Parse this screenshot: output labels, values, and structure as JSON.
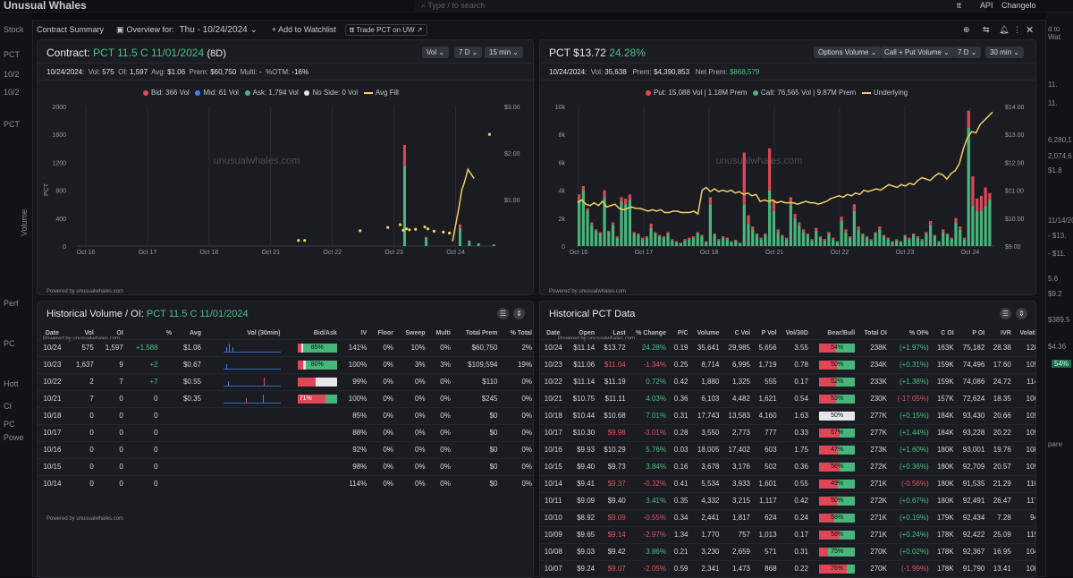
{
  "topbar": {
    "logo": "Unusual Whales",
    "search_placeholder": "Type / to search",
    "api": "API",
    "changelog": "Changelo"
  },
  "modal": {
    "contract_summary": "Contract Summary",
    "overview_for": "Overview for:",
    "date": "Thu - 10/24/2024",
    "add_watchlist": "Add to Watchlist",
    "trade": "Trade PCT on UW"
  },
  "left_bg": [
    "Stock",
    "PCT",
    "10/2",
    "10/2",
    "PCT",
    "Volume",
    "Perf",
    "PC",
    "Hott",
    "CI",
    "PC",
    "Powe"
  ],
  "right_bg": [
    "d to Wat",
    "11.",
    "11.",
    "6,280,1",
    "2,074,6",
    "$1.8",
    "11/14/20",
    "- $13.",
    "- $11.",
    "5.6",
    "$9.2",
    "$389.5",
    "$4.36",
    "54%",
    "pare"
  ],
  "contract": {
    "label": "Contract:",
    "name": "PCT 11.5 C 11/01/2024",
    "dte": "(8D)",
    "pills": [
      "Vol",
      "7 D",
      "15 min"
    ],
    "info": {
      "date": "10/24/2024:",
      "vol_l": "Vol:",
      "vol": "575",
      "oi_l": "OI:",
      "oi": "1,597",
      "avg_l": "Avg:",
      "avg": "$1.06",
      "prem_l": "Prem:",
      "prem": "$60,750",
      "multi_l": "Multi:",
      "multi": "-",
      "otm_l": "%OTM:",
      "otm": "-16%"
    },
    "legend": {
      "bid": "Bid: 366 Vol",
      "mid": "Mid: 61 Vol",
      "ask": "Ask: 1,794 Vol",
      "noside": "No Side: 0 Vol",
      "avgfill": "Avg Fill"
    },
    "watermark": "unusualwhales.com",
    "powered": "Powered by unusualwhales.com"
  },
  "stock": {
    "ticker": "PCT",
    "price": "$13.72",
    "change": "24.28%",
    "pills": [
      "Options Volume",
      "Call + Put Volume",
      "7 D",
      "30 min"
    ],
    "info": {
      "date": "10/24/2024:",
      "vol_l": "Vol:",
      "vol": "35,638",
      "prem_l": "Prem:",
      "prem": "$4,390,853",
      "net_l": "Net Prem:",
      "net": "$868,579"
    },
    "legend": {
      "put": "Put: 15,088 Vol | 1.18M Prem",
      "call": "Call: 76,565 Vol | 9.87M Prem",
      "underlying": "Underlying"
    },
    "watermark": "unusualwhales.com",
    "powered": "Powered by unusualwhales.com"
  },
  "chart_data": [
    {
      "type": "bar",
      "title": "",
      "series": [
        {
          "name": "Bid",
          "color": "#df4757"
        },
        {
          "name": "Ask",
          "color": "#48b57c"
        },
        {
          "name": "Avg Fill",
          "color": "#f3cf63"
        }
      ],
      "x_ticks": [
        "Oct 16",
        "Oct 17",
        "Oct 18",
        "Oct 21",
        "Oct 22",
        "Oct 23",
        "Oct 24"
      ],
      "y_left_ticks": [
        "2000",
        "1600",
        "1200",
        "800",
        "400",
        "0"
      ],
      "y_left_label": "PCT",
      "y_left_range": [
        0,
        2000
      ],
      "y_right_ticks": [
        "$3.00",
        "$2.00",
        "$1.00"
      ],
      "y_right_range": [
        0,
        3
      ],
      "bars": [
        {
          "x": 5.15,
          "ask": 1150,
          "bid": 300
        },
        {
          "x": 5.5,
          "ask": 120,
          "bid": 10
        },
        {
          "x": 6.05,
          "ask": 250,
          "bid": 60
        },
        {
          "x": 6.2,
          "ask": 70,
          "bid": 10
        },
        {
          "x": 6.35,
          "ask": 40,
          "bid": 0
        },
        {
          "x": 6.6,
          "ask": 20,
          "bid": 5
        }
      ],
      "avgfill_points": [
        [
          3.45,
          0.12
        ],
        [
          3.55,
          0.12
        ],
        [
          4.45,
          0.33
        ],
        [
          4.9,
          0.4
        ],
        [
          5.1,
          0.46
        ],
        [
          5.15,
          0.34
        ],
        [
          5.2,
          0.37
        ],
        [
          5.25,
          0.35
        ],
        [
          5.35,
          0.36
        ],
        [
          5.5,
          0.41
        ],
        [
          5.55,
          0.37
        ],
        [
          5.65,
          0.32
        ],
        [
          5.8,
          0.3
        ],
        [
          5.9,
          0.28
        ],
        [
          6.55,
          2.4
        ]
      ],
      "avgfill_line": [
        [
          5.95,
          0.1
        ],
        [
          6.05,
          0.8
        ],
        [
          6.1,
          1.2
        ],
        [
          6.15,
          1.4
        ],
        [
          6.2,
          1.65
        ],
        [
          6.25,
          1.55
        ],
        [
          6.3,
          1.45
        ]
      ]
    },
    {
      "type": "bar",
      "title": "",
      "series": [
        {
          "name": "Put",
          "color": "#df4757"
        },
        {
          "name": "Call",
          "color": "#48b57c"
        },
        {
          "name": "Underlying",
          "color": "#f3cf63"
        }
      ],
      "x_ticks": [
        "Oct 16",
        "Oct 17",
        "Oct 18",
        "Oct 21",
        "Oct 22",
        "Oct 23",
        "Oct 24"
      ],
      "y_left_ticks": [
        "10k",
        "8k",
        "6k",
        "4k",
        "2k",
        "0"
      ],
      "y_left_range": [
        0,
        10000
      ],
      "y_right_ticks": [
        "$14.00",
        "$13.00",
        "$12.00",
        "$11.00",
        "$10.00",
        "$9.00"
      ],
      "y_right_range": [
        9,
        14
      ],
      "calls": [
        3300,
        4000,
        2500,
        1500,
        1100,
        900,
        3500,
        1000,
        1500,
        600,
        3200,
        3000,
        3300,
        900,
        800,
        500,
        600,
        1300,
        900,
        700,
        600,
        900,
        400,
        300,
        200,
        400,
        500,
        600,
        900,
        700,
        300,
        3000,
        800,
        400,
        600,
        500,
        300,
        400,
        200,
        3000,
        1600,
        1200,
        800,
        500,
        800,
        4000,
        2500,
        1000,
        700,
        500,
        3000,
        2000,
        1500,
        1000,
        800,
        400,
        1100,
        600,
        400,
        900,
        500,
        300,
        1800,
        1000,
        600,
        2500,
        1200,
        800,
        600,
        400,
        900,
        1200,
        700,
        500,
        300,
        400,
        300,
        700,
        500,
        800,
        600,
        400,
        900,
        1500,
        700,
        300,
        1000,
        800,
        500,
        1700,
        1200,
        500,
        8500,
        2900,
        2500,
        2500,
        2900,
        3300
      ],
      "puts": [
        400,
        300,
        200,
        200,
        100,
        100,
        500,
        100,
        200,
        100,
        300,
        400,
        400,
        100,
        100,
        100,
        100,
        300,
        100,
        100,
        100,
        100,
        100,
        50,
        50,
        100,
        100,
        100,
        100,
        100,
        50,
        500,
        100,
        100,
        100,
        100,
        50,
        50,
        50,
        3700,
        600,
        200,
        100,
        100,
        100,
        3000,
        800,
        200,
        100,
        100,
        500,
        300,
        200,
        200,
        100,
        100,
        200,
        100,
        100,
        100,
        100,
        50,
        300,
        200,
        100,
        500,
        200,
        100,
        100,
        100,
        100,
        200,
        100,
        100,
        50,
        100,
        50,
        100,
        100,
        100,
        100,
        100,
        100,
        300,
        100,
        50,
        200,
        100,
        100,
        300,
        200,
        100,
        1200,
        2100,
        900,
        1100,
        1300,
        500
      ],
      "underlying": [
        10.55,
        10.65,
        10.5,
        10.45,
        10.55,
        10.45,
        10.6,
        10.4,
        10.45,
        10.5,
        10.35,
        10.3,
        10.35,
        10.4,
        10.35,
        10.35,
        10.3,
        10.25,
        10.3,
        10.25,
        10.3,
        10.2,
        10.2,
        10.25,
        10.25,
        10.2,
        10.2,
        10.2,
        10.25,
        10.15,
        11.0,
        11.1,
        10.95,
        11.05,
        10.95,
        11.0,
        10.95,
        11.0,
        10.9,
        10.95,
        10.85,
        10.9,
        10.8,
        10.85,
        10.6,
        10.65,
        10.6,
        10.65,
        10.55,
        10.6,
        10.55,
        10.55,
        10.55,
        10.5,
        10.55,
        10.6,
        10.55,
        10.55,
        10.5,
        10.55,
        10.6,
        10.7,
        10.75,
        10.8,
        10.75,
        10.85,
        10.8,
        10.9,
        10.85,
        11.0,
        10.95,
        11.0,
        11.05,
        11.0,
        11.1,
        11.2,
        11.15,
        11.1,
        11.2,
        11.15,
        11.25,
        11.2,
        11.35,
        11.45,
        11.4,
        11.35,
        11.5,
        11.6,
        11.55,
        11.4,
        11.6,
        11.7,
        11.95,
        12.5,
        12.9,
        13.1,
        13.05,
        13.35,
        13.5,
        13.65,
        13.8
      ]
    }
  ],
  "hist_vol": {
    "title": "Historical Volume / OI:",
    "contract": "PCT 11.5 C 11/01/2024",
    "powered": "Powered by unusualwhales.com",
    "headers": [
      "Date",
      "Vol",
      "OI",
      "",
      "%",
      "Avg",
      "Vol (30min)",
      "Bid/Ask",
      "IV",
      "Floor",
      "Sweep",
      "Multi",
      "Total Prem",
      "% Total"
    ],
    "rows": [
      {
        "date": "10/24",
        "vol": "575",
        "oi": "1,597",
        "chg": "+1,588",
        "avg": "$1.06",
        "ba": "85%",
        "ba_r": 0.1,
        "ba_g": 0.85,
        "iv": "141%",
        "floor": "0%",
        "sweep": "10%",
        "multi": "0%",
        "prem": "$60,750",
        "tot": "2%"
      },
      {
        "date": "10/23",
        "vol": "1,637",
        "oi": "9",
        "chg": "+2",
        "avg": "$0.67",
        "ba": "80%",
        "ba_r": 0.15,
        "ba_g": 0.8,
        "iv": "100%",
        "floor": "0%",
        "sweep": "3%",
        "multi": "3%",
        "prem": "$109,594",
        "tot": "19%"
      },
      {
        "date": "10/22",
        "vol": "2",
        "oi": "7",
        "chg": "+7",
        "avg": "$0.55",
        "ba": "",
        "ba_r": 0.45,
        "ba_g": 0,
        "iv": "99%",
        "floor": "0%",
        "sweep": "0%",
        "multi": "0%",
        "prem": "$110",
        "tot": "0%"
      },
      {
        "date": "10/21",
        "vol": "7",
        "oi": "0",
        "chg": "0",
        "avg": "$0.35",
        "ba": "71%",
        "ba_r": 0.71,
        "ba_g": 0.29,
        "iv": "100%",
        "floor": "0%",
        "sweep": "0%",
        "multi": "0%",
        "prem": "$245",
        "tot": "0%"
      },
      {
        "date": "10/18",
        "vol": "0",
        "oi": "0",
        "chg": "0",
        "avg": "",
        "ba": "",
        "ba_r": 0,
        "ba_g": 0,
        "iv": "85%",
        "floor": "0%",
        "sweep": "0%",
        "multi": "0%",
        "prem": "$0",
        "tot": "0%"
      },
      {
        "date": "10/17",
        "vol": "0",
        "oi": "0",
        "chg": "0",
        "avg": "",
        "ba": "",
        "ba_r": 0,
        "ba_g": 0,
        "iv": "88%",
        "floor": "0%",
        "sweep": "0%",
        "multi": "0%",
        "prem": "$0",
        "tot": "0%"
      },
      {
        "date": "10/16",
        "vol": "0",
        "oi": "0",
        "chg": "0",
        "avg": "",
        "ba": "",
        "ba_r": 0,
        "ba_g": 0,
        "iv": "92%",
        "floor": "0%",
        "sweep": "0%",
        "multi": "0%",
        "prem": "$0",
        "tot": "0%"
      },
      {
        "date": "10/15",
        "vol": "0",
        "oi": "0",
        "chg": "0",
        "avg": "",
        "ba": "",
        "ba_r": 0,
        "ba_g": 0,
        "iv": "98%",
        "floor": "0%",
        "sweep": "0%",
        "multi": "0%",
        "prem": "$0",
        "tot": "0%"
      },
      {
        "date": "10/14",
        "vol": "0",
        "oi": "0",
        "chg": "0",
        "avg": "",
        "ba": "",
        "ba_r": 0,
        "ba_g": 0,
        "iv": "114%",
        "floor": "0%",
        "sweep": "0%",
        "multi": "0%",
        "prem": "$0",
        "tot": "0%"
      }
    ]
  },
  "hist_pct": {
    "title": "Historical PCT Data",
    "powered": "Powered by unusualwhales.com",
    "headers": [
      "Date",
      "Open",
      "Last",
      "% Change",
      "P/C",
      "Volume",
      "C Vol",
      "P Vol",
      "Vol/30D",
      "Bear/Bull",
      "Total OI",
      "% OI%",
      "C OI",
      "P OI",
      "IVR",
      "Volatil"
    ],
    "rows": [
      {
        "date": "10/24",
        "open": "$11.14",
        "last": "$13.72",
        "chg": "24.28%",
        "pc": "0.19",
        "vol": "35,641",
        "cvol": "29,985",
        "pvol": "5,656",
        "v30": "3.55",
        "bb": "54%",
        "bb_r": 0.46,
        "toi": "238K",
        "oip": "(+1.97%)",
        "coi": "163K",
        "poi": "75,182",
        "ivr": "28.38",
        "vola": "128"
      },
      {
        "date": "10/23",
        "open": "$11.06",
        "last": "$11.04",
        "chg": "-1.34%",
        "pc": "0.25",
        "vol": "8,714",
        "cvol": "6,995",
        "pvol": "1,719",
        "v30": "0.78",
        "bb": "50%",
        "bb_r": 0.5,
        "toi": "234K",
        "oip": "(+0.31%)",
        "coi": "159K",
        "poi": "74,496",
        "ivr": "17.60",
        "vola": "105"
      },
      {
        "date": "10/22",
        "open": "$11.14",
        "last": "$11.19",
        "chg": "0.72%",
        "pc": "0.42",
        "vol": "1,880",
        "cvol": "1,325",
        "pvol": "555",
        "v30": "0.17",
        "bb": "52%",
        "bb_r": 0.48,
        "toi": "233K",
        "oip": "(+1.38%)",
        "coi": "159K",
        "poi": "74,086",
        "ivr": "24.72",
        "vola": "114"
      },
      {
        "date": "10/21",
        "open": "$10.75",
        "last": "$11.11",
        "chg": "4.03%",
        "pc": "0.36",
        "vol": "6,103",
        "cvol": "4,482",
        "pvol": "1,621",
        "v30": "0.54",
        "bb": "53%",
        "bb_r": 0.47,
        "toi": "230K",
        "oip": "(-17.05%)",
        "coi": "157K",
        "poi": "72,624",
        "ivr": "18.35",
        "vola": "106"
      },
      {
        "date": "10/18",
        "open": "$10.44",
        "last": "$10.68",
        "chg": "7.01%",
        "pc": "0.31",
        "vol": "17,743",
        "cvol": "13,583",
        "pvol": "4,160",
        "v30": "1.63",
        "bb": "50%",
        "bb_r": 0,
        "toi": "277K",
        "oip": "(+0.15%)",
        "coi": "184K",
        "poi": "93,430",
        "ivr": "20.66",
        "vola": "109"
      },
      {
        "date": "10/17",
        "open": "$10.30",
        "last": "$9.98",
        "chg": "-3.01%",
        "pc": "0.28",
        "vol": "3,550",
        "cvol": "2,773",
        "pvol": "777",
        "v30": "0.33",
        "bb": "57%",
        "bb_r": 0.57,
        "toi": "277K",
        "oip": "(+1.44%)",
        "coi": "184K",
        "poi": "93,228",
        "ivr": "20.22",
        "vola": "109"
      },
      {
        "date": "10/16",
        "open": "$9.93",
        "last": "$10.29",
        "chg": "5.76%",
        "pc": "0.03",
        "vol": "18,005",
        "cvol": "17,402",
        "pvol": "603",
        "v30": "1.75",
        "bb": "47%",
        "bb_r": 0.53,
        "toi": "273K",
        "oip": "(+1.60%)",
        "coi": "180K",
        "poi": "93,001",
        "ivr": "19.76",
        "vola": "108"
      },
      {
        "date": "10/15",
        "open": "$9.40",
        "last": "$9.73",
        "chg": "3.84%",
        "pc": "0.16",
        "vol": "3,678",
        "cvol": "3,176",
        "pvol": "502",
        "v30": "0.36",
        "bb": "56%",
        "bb_r": 0.56,
        "toi": "272K",
        "oip": "(+0.36%)",
        "coi": "180K",
        "poi": "92,709",
        "ivr": "20.57",
        "vola": "109"
      },
      {
        "date": "10/14",
        "open": "$9.41",
        "last": "$9.37",
        "chg": "-0.32%",
        "pc": "0.41",
        "vol": "5,534",
        "cvol": "3,933",
        "pvol": "1,601",
        "v30": "0.55",
        "bb": "49%",
        "bb_r": 0.51,
        "toi": "271K",
        "oip": "(-0.56%)",
        "coi": "180K",
        "poi": "91,535",
        "ivr": "21.29",
        "vola": "110"
      },
      {
        "date": "10/11",
        "open": "$9.09",
        "last": "$9.40",
        "chg": "3.41%",
        "pc": "0.35",
        "vol": "4,332",
        "cvol": "3,215",
        "pvol": "1,117",
        "v30": "0.42",
        "bb": "50%",
        "bb_r": 0.5,
        "toi": "272K",
        "oip": "(+0.67%)",
        "coi": "180K",
        "poi": "92,491",
        "ivr": "26.47",
        "vola": "117"
      },
      {
        "date": "10/10",
        "open": "$8.92",
        "last": "$9.09",
        "chg": "-0.55%",
        "pc": "0.34",
        "vol": "2,441",
        "cvol": "1,817",
        "pvol": "624",
        "v30": "0.24",
        "bb": "58%",
        "bb_r": 0.42,
        "toi": "271K",
        "oip": "(+0.19%)",
        "coi": "179K",
        "poi": "92,434",
        "ivr": "7.28",
        "vola": "94"
      },
      {
        "date": "10/09",
        "open": "$9.65",
        "last": "$9.14",
        "chg": "-2.97%",
        "pc": "1.34",
        "vol": "1,770",
        "cvol": "757",
        "pvol": "1,013",
        "v30": "0.17",
        "bb": "58%",
        "bb_r": 0.58,
        "toi": "271K",
        "oip": "(+0.24%)",
        "coi": "178K",
        "poi": "92,422",
        "ivr": "25.09",
        "vola": "115"
      },
      {
        "date": "10/08",
        "open": "$9.03",
        "last": "$9.42",
        "chg": "3.86%",
        "pc": "0.21",
        "vol": "3,230",
        "cvol": "2,659",
        "pvol": "571",
        "v30": "0.31",
        "bb": "75%",
        "bb_r": 0.25,
        "toi": "270K",
        "oip": "(+0.02%)",
        "coi": "178K",
        "poi": "92,367",
        "ivr": "16.95",
        "vola": "104"
      },
      {
        "date": "10/07",
        "open": "$9.24",
        "last": "$9.07",
        "chg": "-2.05%",
        "pc": "0.59",
        "vol": "2,341",
        "cvol": "1,473",
        "pvol": "868",
        "v30": "0.22",
        "bb": "76%",
        "bb_r": 0.76,
        "toi": "270K",
        "oip": "(-1.99%)",
        "coi": "178K",
        "poi": "91,790",
        "ivr": "13.41",
        "vola": "100"
      }
    ]
  }
}
